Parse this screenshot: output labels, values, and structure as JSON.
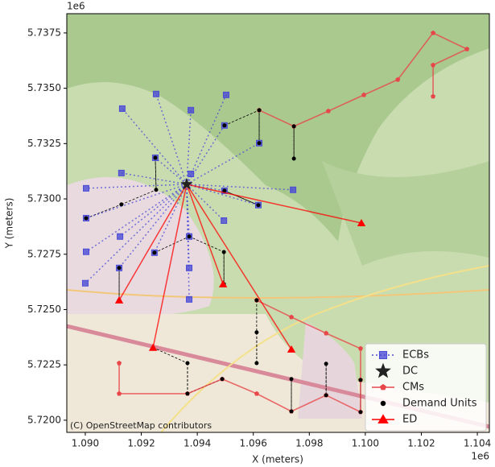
{
  "chart_data": {
    "type": "scatter",
    "xlabel": "X (meters)",
    "ylabel": "Y (meters)",
    "x_offset_label": "1e6",
    "y_offset_label": "1e6",
    "attribution": "(C) OpenStreetMap contributors",
    "legend": "lower right",
    "xlim": [
      1.08934,
      1.10443
    ],
    "ylim": [
      5.71945,
      5.73837
    ],
    "xticks": [
      {
        "value": 1.09,
        "label": "1.090"
      },
      {
        "value": 1.092,
        "label": "1.092"
      },
      {
        "value": 1.094,
        "label": "1.094"
      },
      {
        "value": 1.096,
        "label": "1.096"
      },
      {
        "value": 1.098,
        "label": "1.098"
      },
      {
        "value": 1.1,
        "label": "1.100"
      },
      {
        "value": 1.102,
        "label": "1.102"
      },
      {
        "value": 1.104,
        "label": "1.104"
      }
    ],
    "yticks": [
      {
        "value": 5.72,
        "label": "5.7200"
      },
      {
        "value": 5.7225,
        "label": "5.7225"
      },
      {
        "value": 5.725,
        "label": "5.7250"
      },
      {
        "value": 5.7275,
        "label": "5.7275"
      },
      {
        "value": 5.73,
        "label": "5.7300"
      },
      {
        "value": 5.7325,
        "label": "5.7325"
      },
      {
        "value": 5.735,
        "label": "5.7350"
      },
      {
        "value": 5.7375,
        "label": "5.7375"
      }
    ],
    "series": [
      {
        "name": "ECBs",
        "color": "#4b4bd6",
        "marker": "square",
        "linestyle": "dotted",
        "x": [
          1.09132,
          1.09253,
          1.09377,
          1.09503,
          1.09497,
          1.09621,
          1.09742,
          1.09618,
          1.09495,
          1.09497,
          1.09377,
          1.0925,
          1.09129,
          1.09003,
          1.09003,
          1.09003,
          1.09,
          1.09124,
          1.09121,
          1.09247,
          1.09371,
          1.09371,
          1.09371
        ],
        "values": [
          5.73408,
          5.73474,
          5.73401,
          5.7347,
          5.73332,
          5.73252,
          5.73041,
          5.72972,
          5.72902,
          5.73037,
          5.73113,
          5.73186,
          5.73117,
          5.73048,
          5.72913,
          5.72761,
          5.72619,
          5.7283,
          5.72688,
          5.72757,
          5.7283,
          5.72688,
          5.72546
        ]
      },
      {
        "name": "DC",
        "color": "#222222",
        "marker": "star",
        "linestyle": "none",
        "x": [
          1.09362
        ],
        "values": [
          5.73066
        ]
      },
      {
        "name": "CMs",
        "color": "#e8474a",
        "marker": "pentagon",
        "linestyle": "solid",
        "x": [
          1.09621,
          1.09745,
          1.09868,
          1.09995,
          1.10116,
          1.10242,
          1.10363,
          1.10242,
          1.10242,
          null,
          1.09121,
          1.09121,
          1.09365,
          1.09489,
          1.09612,
          1.09736,
          1.0986,
          1.09983,
          1.09983,
          1.09983,
          1.0986,
          1.09736,
          1.09612
        ],
        "values": [
          5.73401,
          5.73328,
          5.73397,
          5.7347,
          5.73539,
          5.7375,
          5.73677,
          5.73605,
          5.73463,
          null,
          5.72258,
          5.7212,
          5.7212,
          5.72186,
          5.7212,
          5.7204,
          5.72113,
          5.72037,
          5.72182,
          5.72324,
          5.72393,
          5.72466,
          5.72542
        ]
      },
      {
        "name": "Demand Units",
        "color": "#000000",
        "marker": "dot",
        "linestyle": "none",
        "x": [
          1.09497,
          1.09621,
          1.09745,
          1.09621,
          1.09745,
          1.09497,
          1.09618,
          1.0925,
          1.09253,
          1.09129,
          1.09003,
          1.09121,
          1.09247,
          1.09371,
          1.09495,
          1.09495,
          1.09612,
          1.09612,
          1.09489,
          1.09365,
          1.09365,
          1.09612,
          1.09736,
          1.0986,
          1.09983,
          1.09983,
          1.09736,
          1.0986,
          1.09121,
          1.09242
        ],
        "values": [
          5.73332,
          5.73401,
          5.73328,
          5.73252,
          5.73182,
          5.73037,
          5.72972,
          5.73186,
          5.73041,
          5.72975,
          5.72913,
          5.72688,
          5.72757,
          5.7283,
          5.7276,
          5.72615,
          5.72542,
          5.72397,
          5.72186,
          5.72258,
          5.7212,
          5.72258,
          5.72186,
          5.72255,
          5.72182,
          5.72037,
          5.7204,
          5.72113,
          5.72542,
          5.72328
        ]
      },
      {
        "name": "ED",
        "color": "#ff0000",
        "marker": "triangle",
        "linestyle": "solid",
        "x": [
          1.09986,
          1.09121,
          1.09242,
          1.09492,
          1.09736
        ],
        "values": [
          5.72891,
          5.72542,
          5.72328,
          5.72615,
          5.7232
        ]
      }
    ]
  }
}
